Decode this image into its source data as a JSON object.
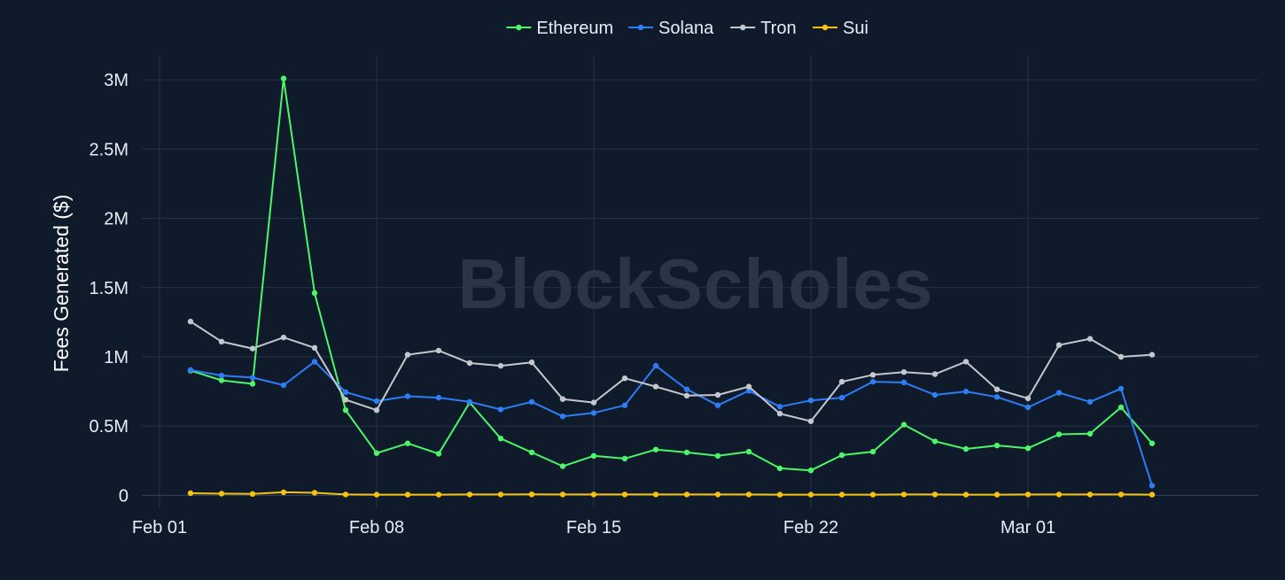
{
  "chart_data": {
    "type": "line",
    "watermark": "BlockScholes",
    "ylabel": "Fees Generated ($)",
    "xlabel": "",
    "ylim": [
      -100000,
      3180000
    ],
    "xlim": [
      "2025-02-01",
      "2025-03-09"
    ],
    "grid": true,
    "legend_position": "top-center",
    "x_ticks": [
      {
        "date": "2025-02-01",
        "label": "Feb 01"
      },
      {
        "date": "2025-02-08",
        "label": "Feb 08"
      },
      {
        "date": "2025-02-15",
        "label": "Feb 15"
      },
      {
        "date": "2025-02-22",
        "label": "Feb 22"
      },
      {
        "date": "2025-03-01",
        "label": "Mar 01"
      }
    ],
    "y_ticks": [
      {
        "value": 0,
        "label": "0"
      },
      {
        "value": 500000,
        "label": "0.5M"
      },
      {
        "value": 1000000,
        "label": "1M"
      },
      {
        "value": 1500000,
        "label": "1.5M"
      },
      {
        "value": 2000000,
        "label": "2M"
      },
      {
        "value": 2500000,
        "label": "2.5M"
      },
      {
        "value": 3000000,
        "label": "3M"
      }
    ],
    "x": [
      "2025-02-02",
      "2025-02-03",
      "2025-02-04",
      "2025-02-05",
      "2025-02-06",
      "2025-02-07",
      "2025-02-08",
      "2025-02-09",
      "2025-02-10",
      "2025-02-11",
      "2025-02-12",
      "2025-02-13",
      "2025-02-14",
      "2025-02-15",
      "2025-02-16",
      "2025-02-17",
      "2025-02-18",
      "2025-02-19",
      "2025-02-20",
      "2025-02-21",
      "2025-02-22",
      "2025-02-23",
      "2025-02-24",
      "2025-02-25",
      "2025-02-26",
      "2025-02-27",
      "2025-02-28",
      "2025-03-01",
      "2025-03-02",
      "2025-03-03",
      "2025-03-04",
      "2025-03-05"
    ],
    "series": [
      {
        "name": "Ethereum",
        "color": "#4cf569",
        "values": [
          900000,
          830000,
          805000,
          3010000,
          1460000,
          615000,
          305000,
          375000,
          300000,
          670000,
          410000,
          310000,
          210000,
          285000,
          265000,
          330000,
          310000,
          285000,
          315000,
          195000,
          180000,
          290000,
          315000,
          510000,
          390000,
          335000,
          360000,
          340000,
          440000,
          445000,
          635000,
          375000
        ]
      },
      {
        "name": "Solana",
        "color": "#2d7df6",
        "values": [
          905000,
          865000,
          850000,
          795000,
          965000,
          745000,
          680000,
          715000,
          705000,
          675000,
          620000,
          675000,
          570000,
          595000,
          650000,
          935000,
          765000,
          650000,
          755000,
          640000,
          685000,
          705000,
          820000,
          815000,
          725000,
          750000,
          710000,
          635000,
          740000,
          675000,
          770000,
          70000
        ]
      },
      {
        "name": "Tron",
        "color": "#c4c7cc",
        "values": [
          1255000,
          1110000,
          1060000,
          1140000,
          1065000,
          690000,
          615000,
          1015000,
          1045000,
          955000,
          935000,
          960000,
          695000,
          670000,
          845000,
          785000,
          720000,
          725000,
          785000,
          590000,
          535000,
          820000,
          870000,
          890000,
          875000,
          965000,
          765000,
          700000,
          1085000,
          1130000,
          1000000,
          1015000
        ]
      },
      {
        "name": "Sui",
        "color": "#f5c211",
        "values": [
          15000,
          12000,
          10000,
          22000,
          18000,
          6000,
          5000,
          5000,
          5000,
          6000,
          6000,
          7000,
          6000,
          6000,
          6000,
          6000,
          6000,
          6000,
          6000,
          5000,
          5000,
          5000,
          5000,
          6000,
          6000,
          5000,
          5000,
          6000,
          6000,
          6000,
          6000,
          5000
        ]
      }
    ]
  }
}
